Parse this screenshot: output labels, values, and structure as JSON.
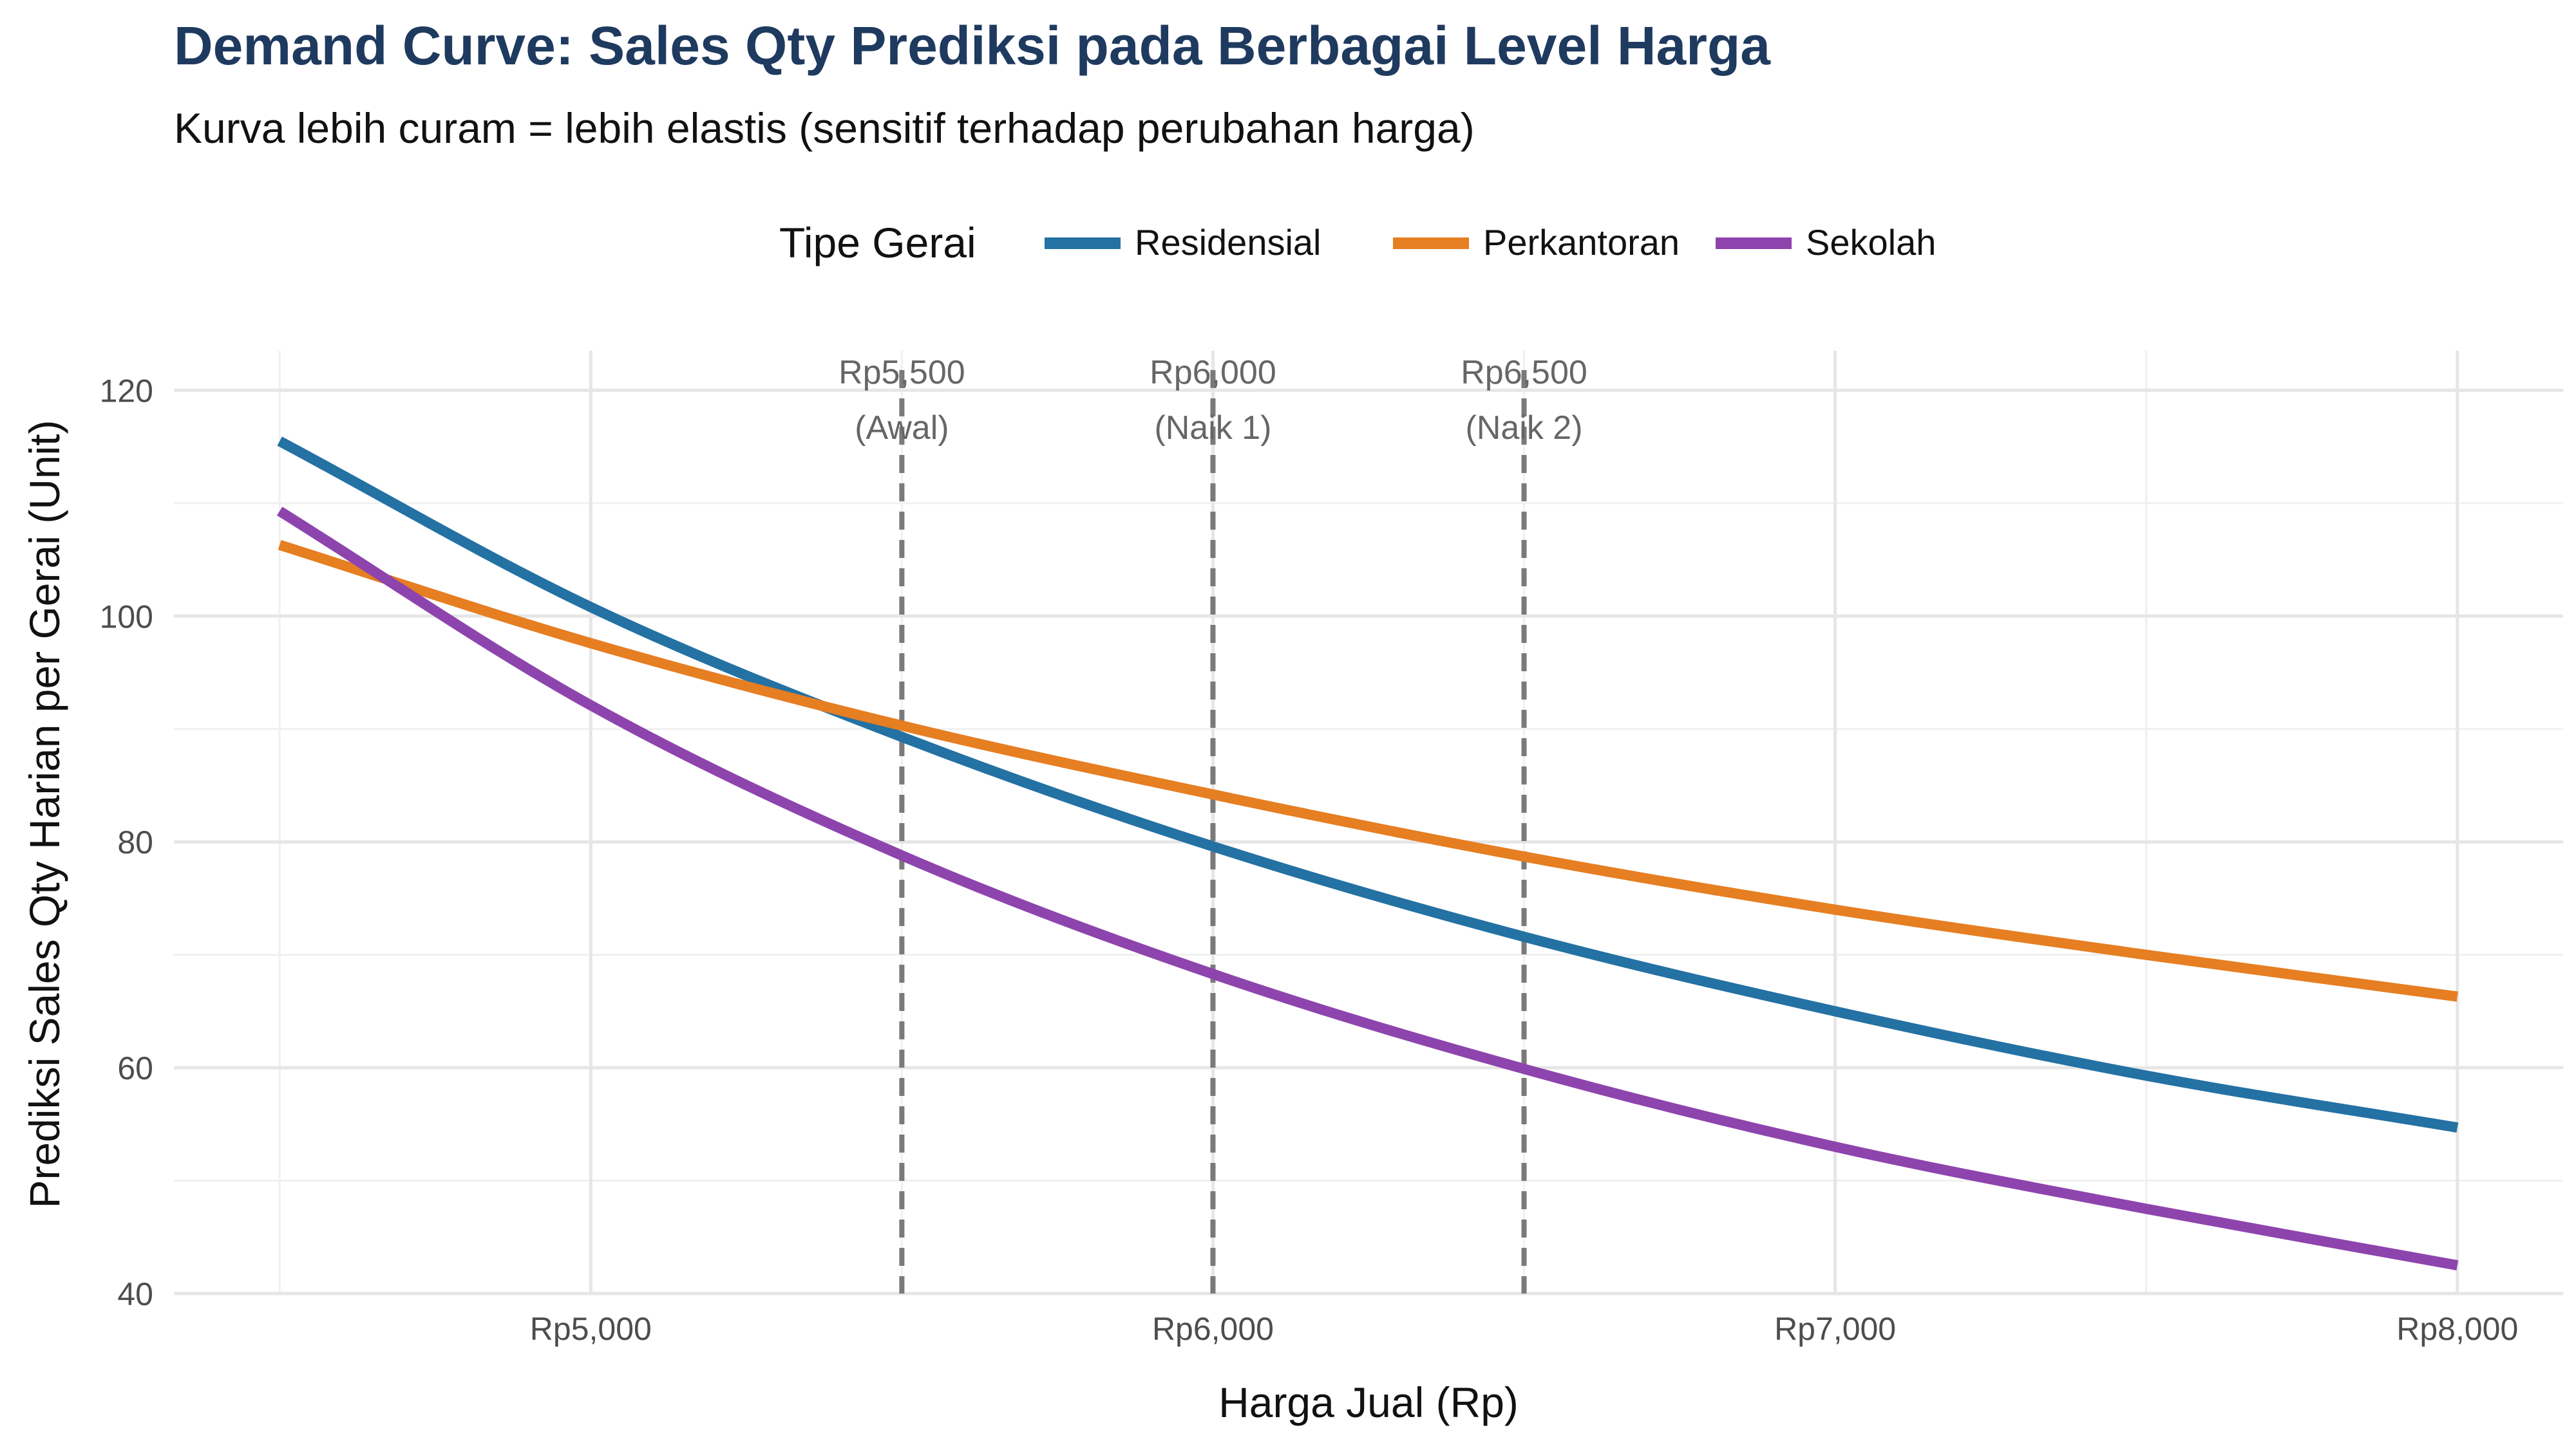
{
  "chart_data": {
    "type": "line",
    "title": "Demand Curve: Sales Qty Prediksi pada Berbagai Level Harga",
    "subtitle": "Kurva lebih curam = lebih elastis (sensitif terhadap perubahan harga)",
    "xlabel": "Harga Jual (Rp)",
    "ylabel": "Prediksi Sales Qty Harian per Gerai (Unit)",
    "xlim": [
      4330,
      8170
    ],
    "ylim": [
      40,
      123.5
    ],
    "x_ticks": [
      {
        "value": 5000,
        "label": "Rp5,000"
      },
      {
        "value": 6000,
        "label": "Rp6,000"
      },
      {
        "value": 7000,
        "label": "Rp7,000"
      },
      {
        "value": 8000,
        "label": "Rp8,000"
      }
    ],
    "y_ticks": [
      {
        "value": 40,
        "label": "40"
      },
      {
        "value": 60,
        "label": "60"
      },
      {
        "value": 80,
        "label": "80"
      },
      {
        "value": 100,
        "label": "100"
      },
      {
        "value": 120,
        "label": "120"
      }
    ],
    "grid": true,
    "legend": {
      "title": "Tipe Gerai",
      "position": "top",
      "items": [
        {
          "name": "Residensial",
          "color": "#2471a3"
        },
        {
          "name": "Perkantoran",
          "color": "#e67e22"
        },
        {
          "name": "Sekolah",
          "color": "#8e44ad"
        }
      ]
    },
    "x": [
      4500,
      5000,
      5500,
      6000,
      6500,
      7000,
      7500,
      8000
    ],
    "series": [
      {
        "name": "Residensial",
        "color": "#2471a3",
        "values": [
          115.5,
          100.8,
          89.3,
          79.6,
          71.6,
          65.0,
          59.3,
          54.7
        ]
      },
      {
        "name": "Perkantoran",
        "color": "#e67e22",
        "values": [
          106.3,
          97.6,
          90.3,
          84.2,
          78.7,
          74.0,
          70.0,
          66.3
        ]
      },
      {
        "name": "Sekolah",
        "color": "#8e44ad",
        "values": [
          109.3,
          92.1,
          78.8,
          68.3,
          59.9,
          53.0,
          47.5,
          42.5
        ]
      }
    ],
    "reference_lines": [
      {
        "x": 5500,
        "label_line1": "Rp5,500",
        "label_line2": "(Awal)"
      },
      {
        "x": 6000,
        "label_line1": "Rp6,000",
        "label_line2": "(Naik 1)"
      },
      {
        "x": 6500,
        "label_line1": "Rp6,500",
        "label_line2": "(Naik 2)"
      }
    ]
  }
}
